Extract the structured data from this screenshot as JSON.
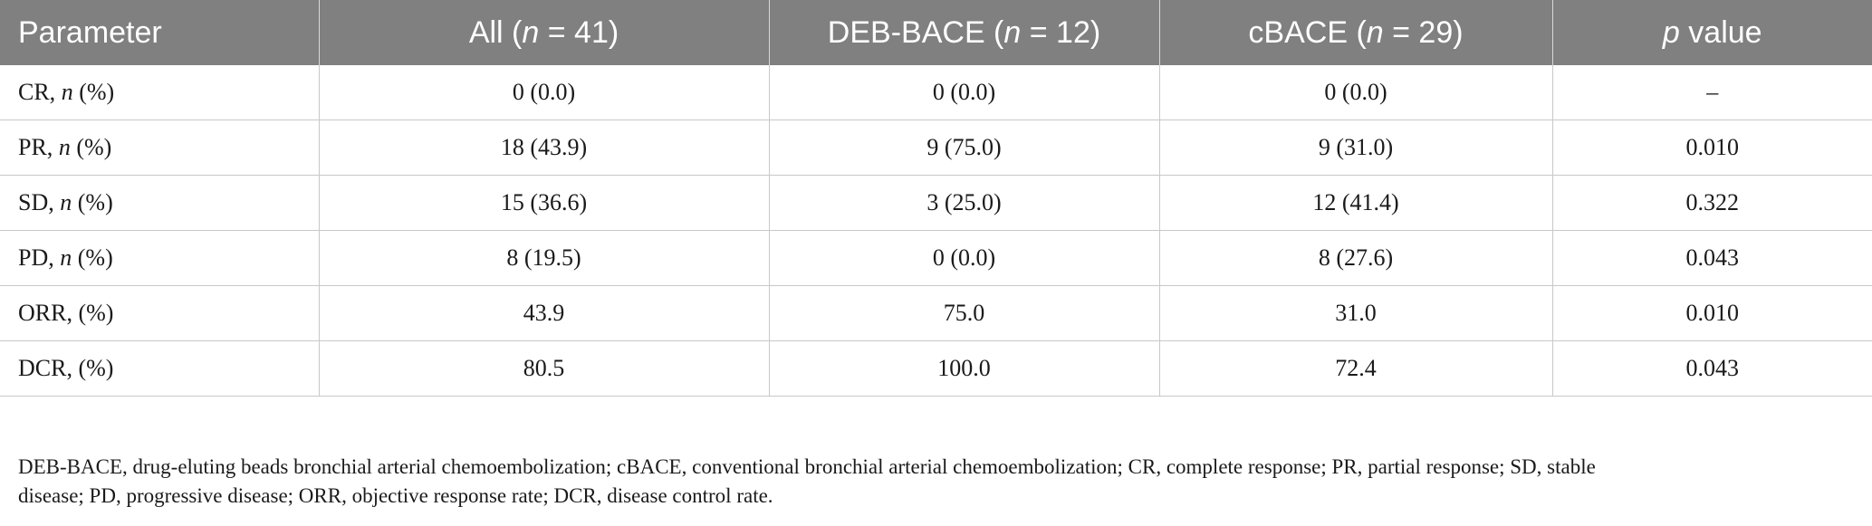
{
  "header": {
    "parameter": "Parameter",
    "all": {
      "pre": "All (",
      "n": "n",
      "post": " = 41)"
    },
    "deb": {
      "pre": "DEB-BACE (",
      "n": "n",
      "post": " = 12)"
    },
    "cbace": {
      "pre": "cBACE (",
      "n": "n",
      "post": " = 29)"
    },
    "pvalue": {
      "p": "p",
      "post": " value"
    }
  },
  "rows": [
    {
      "label_pre": "CR, ",
      "label_n": "n",
      "label_post": " (%)",
      "all": "0 (0.0)",
      "deb": "0 (0.0)",
      "cbace": "0 (0.0)",
      "p": "–"
    },
    {
      "label_pre": "PR, ",
      "label_n": "n",
      "label_post": " (%)",
      "all": "18 (43.9)",
      "deb": "9 (75.0)",
      "cbace": "9 (31.0)",
      "p": "0.010"
    },
    {
      "label_pre": "SD, ",
      "label_n": "n",
      "label_post": " (%)",
      "all": "15 (36.6)",
      "deb": "3 (25.0)",
      "cbace": "12 (41.4)",
      "p": "0.322"
    },
    {
      "label_pre": "PD, ",
      "label_n": "n",
      "label_post": " (%)",
      "all": "8 (19.5)",
      "deb": "0 (0.0)",
      "cbace": "8 (27.6)",
      "p": "0.043"
    },
    {
      "label_pre": "ORR, (%)",
      "label_n": "",
      "label_post": "",
      "all": "43.9",
      "deb": "75.0",
      "cbace": "31.0",
      "p": "0.010"
    },
    {
      "label_pre": "DCR, (%)",
      "label_n": "",
      "label_post": "",
      "all": "80.5",
      "deb": "100.0",
      "cbace": "72.4",
      "p": "0.043"
    }
  ],
  "footnote": {
    "line1": "DEB-BACE, drug-eluting beads bronchial arterial chemoembolization; cBACE, conventional bronchial arterial chemoembolization; CR, complete response; PR, partial response; SD, stable",
    "line2": "disease; PD, progressive disease; ORR, objective response rate; DCR, disease control rate."
  }
}
